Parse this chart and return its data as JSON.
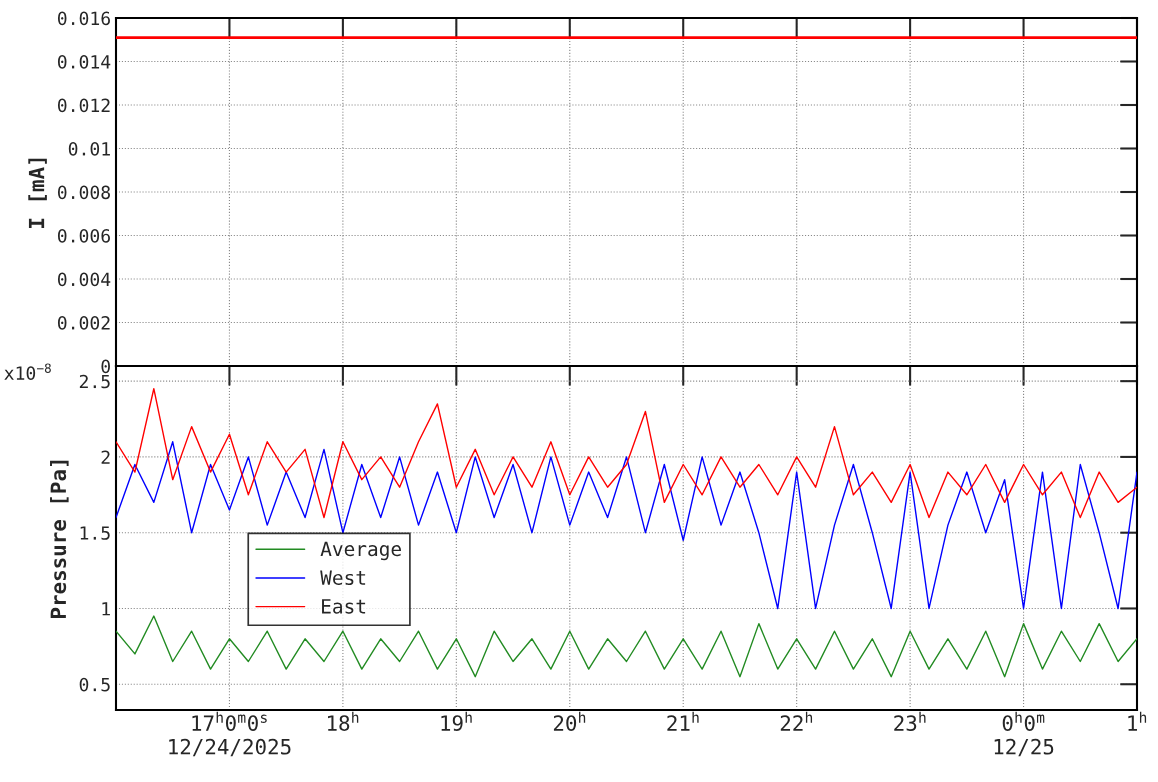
{
  "chart_data": [
    {
      "type": "line",
      "ylabel": "I [mA]",
      "xlim": [
        "2025-12-24T16:00",
        "2025-12-25T01:00"
      ],
      "ylim": [
        0,
        0.016
      ],
      "yticks": [
        0,
        0.002,
        0.004,
        0.006,
        0.008,
        0.01,
        0.012,
        0.014,
        0.016
      ],
      "xticks": [
        {
          "value": "2025-12-24T17:00",
          "label": null
        },
        {
          "value": "2025-12-24T18:00",
          "label": null
        },
        {
          "value": "2025-12-24T19:00",
          "label": null
        },
        {
          "value": "2025-12-24T20:00",
          "label": null
        },
        {
          "value": "2025-12-24T21:00",
          "label": null
        },
        {
          "value": "2025-12-24T22:00",
          "label": null
        },
        {
          "value": "2025-12-24T23:00",
          "label": null
        },
        {
          "value": "2025-12-25T00:00",
          "label": null
        },
        {
          "value": "2025-12-25T01:00",
          "label": null
        }
      ],
      "tick_labels": "y",
      "grid": true,
      "series": [
        {
          "color": "#ff0000",
          "x": [
            "2025-12-24T16:00",
            "2025-12-25T01:00"
          ],
          "values": [
            0.0151,
            0.0151
          ]
        }
      ]
    },
    {
      "type": "line",
      "ylabel": "Pressure [Pa]",
      "annotations": [
        "x10$^{−8}$"
      ],
      "legend": "left",
      "grid": true,
      "xlim": [
        "2025-12-24T16:00",
        "2025-12-25T01:00"
      ],
      "ylim": [
        0.33,
        2.6
      ],
      "yticks": [
        0.5,
        1,
        1.5,
        2,
        2.5
      ],
      "xticks": [
        {
          "value": "2025-12-24T17:00",
          "label": "17$^{h}$0$^{m}$0$^{s}$\n12/24/2025"
        },
        {
          "value": "2025-12-24T18:00",
          "label": "18$^{h}$"
        },
        {
          "value": "2025-12-24T19:00",
          "label": "19$^{h}$"
        },
        {
          "value": "2025-12-24T20:00",
          "label": "20$^{h}$"
        },
        {
          "value": "2025-12-24T21:00",
          "label": "21$^{h}$"
        },
        {
          "value": "2025-12-24T22:00",
          "label": "22$^{h}$"
        },
        {
          "value": "2025-12-24T23:00",
          "label": "23$^{h}$"
        },
        {
          "value": "2025-12-25T00:00",
          "label": "0$^{h}$0$^{m}$\n12/25"
        },
        {
          "value": "2025-12-25T01:00",
          "label": "1$^{h}$"
        }
      ],
      "x": [
        "2025-12-24T16:00",
        "2025-12-24T16:10",
        "2025-12-24T16:20",
        "2025-12-24T16:30",
        "2025-12-24T16:40",
        "2025-12-24T16:50",
        "2025-12-24T17:00",
        "2025-12-24T17:10",
        "2025-12-24T17:20",
        "2025-12-24T17:30",
        "2025-12-24T17:40",
        "2025-12-24T17:50",
        "2025-12-24T18:00",
        "2025-12-24T18:10",
        "2025-12-24T18:20",
        "2025-12-24T18:30",
        "2025-12-24T18:40",
        "2025-12-24T18:50",
        "2025-12-24T19:00",
        "2025-12-24T19:10",
        "2025-12-24T19:20",
        "2025-12-24T19:30",
        "2025-12-24T19:40",
        "2025-12-24T19:50",
        "2025-12-24T20:00",
        "2025-12-24T20:10",
        "2025-12-24T20:20",
        "2025-12-24T20:30",
        "2025-12-24T20:40",
        "2025-12-24T20:50",
        "2025-12-24T21:00",
        "2025-12-24T21:10",
        "2025-12-24T21:20",
        "2025-12-24T21:30",
        "2025-12-24T21:40",
        "2025-12-24T21:50",
        "2025-12-24T22:00",
        "2025-12-24T22:10",
        "2025-12-24T22:20",
        "2025-12-24T22:30",
        "2025-12-24T22:40",
        "2025-12-24T22:50",
        "2025-12-24T23:00",
        "2025-12-24T23:10",
        "2025-12-24T23:20",
        "2025-12-24T23:30",
        "2025-12-24T23:40",
        "2025-12-24T23:50",
        "2025-12-25T00:00",
        "2025-12-25T00:10",
        "2025-12-25T00:20",
        "2025-12-25T00:30",
        "2025-12-25T00:40",
        "2025-12-25T00:50",
        "2025-12-25T01:00"
      ],
      "series": [
        {
          "name": "Average",
          "color": "#228b22",
          "values": [
            0.85,
            0.7,
            0.95,
            0.65,
            0.85,
            0.6,
            0.8,
            0.65,
            0.85,
            0.6,
            0.8,
            0.65,
            0.85,
            0.6,
            0.8,
            0.65,
            0.85,
            0.6,
            0.8,
            0.55,
            0.85,
            0.65,
            0.8,
            0.6,
            0.85,
            0.6,
            0.8,
            0.65,
            0.85,
            0.6,
            0.8,
            0.6,
            0.85,
            0.55,
            0.9,
            0.6,
            0.8,
            0.6,
            0.85,
            0.6,
            0.8,
            0.55,
            0.85,
            0.6,
            0.8,
            0.6,
            0.85,
            0.55,
            0.9,
            0.6,
            0.85,
            0.65,
            0.9,
            0.65,
            0.8
          ]
        },
        {
          "name": "West",
          "color": "#0000ff",
          "values": [
            1.6,
            1.95,
            1.7,
            2.1,
            1.5,
            1.95,
            1.65,
            2.0,
            1.55,
            1.9,
            1.6,
            2.05,
            1.5,
            1.95,
            1.6,
            2.0,
            1.55,
            1.9,
            1.5,
            2.0,
            1.6,
            1.95,
            1.5,
            2.0,
            1.55,
            1.9,
            1.6,
            2.0,
            1.5,
            1.95,
            1.45,
            2.0,
            1.55,
            1.9,
            1.5,
            1.0,
            1.9,
            1.0,
            1.55,
            1.95,
            1.5,
            1.0,
            1.9,
            1.0,
            1.55,
            1.9,
            1.5,
            1.85,
            1.0,
            1.9,
            1.0,
            1.95,
            1.5,
            1.0,
            1.9
          ]
        },
        {
          "name": "East",
          "color": "#ff0000",
          "values": [
            2.1,
            1.9,
            2.45,
            1.85,
            2.2,
            1.9,
            2.15,
            1.75,
            2.1,
            1.9,
            2.05,
            1.6,
            2.1,
            1.85,
            2.0,
            1.8,
            2.1,
            2.35,
            1.8,
            2.05,
            1.75,
            2.0,
            1.8,
            2.1,
            1.75,
            2.0,
            1.8,
            1.95,
            2.3,
            1.7,
            1.95,
            1.75,
            2.0,
            1.8,
            1.95,
            1.75,
            2.0,
            1.8,
            2.2,
            1.75,
            1.9,
            1.7,
            1.95,
            1.6,
            1.9,
            1.75,
            1.95,
            1.7,
            1.95,
            1.75,
            1.9,
            1.6,
            1.9,
            1.7,
            1.8
          ]
        }
      ]
    }
  ]
}
